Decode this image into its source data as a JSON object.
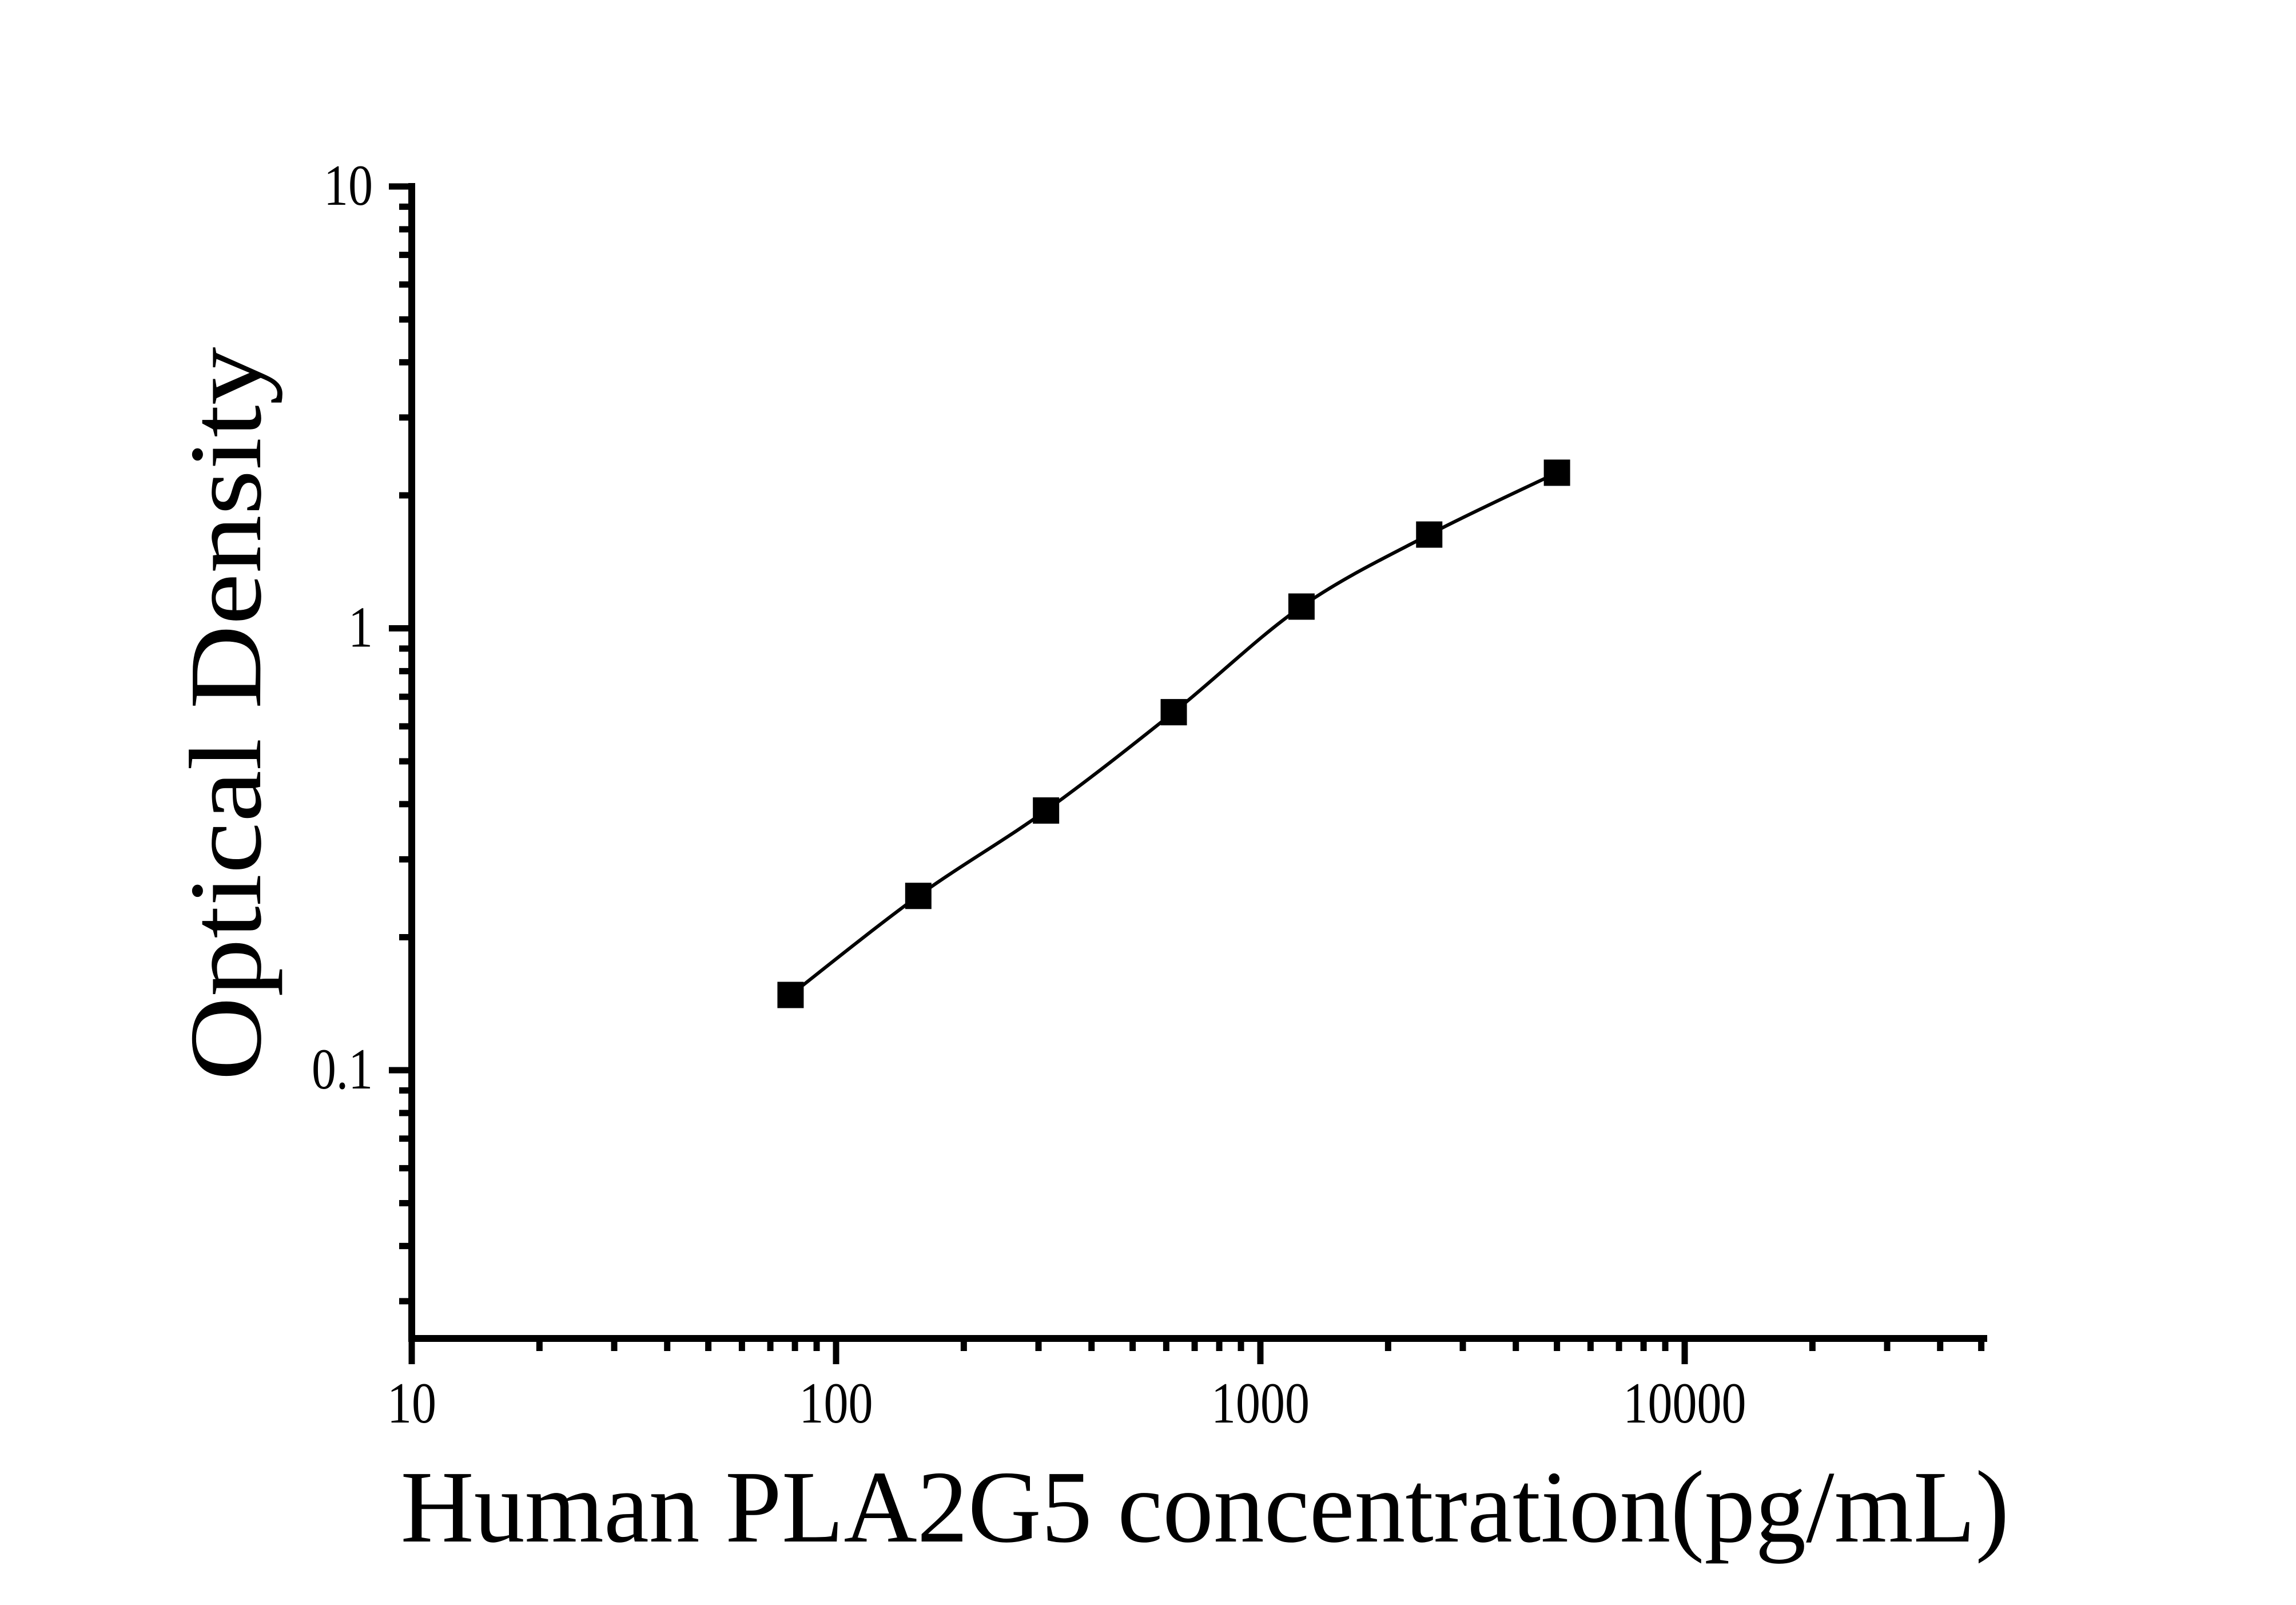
{
  "figure": {
    "background_color": "#ffffff",
    "ink_color": "#000000"
  },
  "chart_data": {
    "type": "scatter",
    "subtype": "standard-curve-with-smooth-fit-line",
    "title": "",
    "xlabel": "Human PLA2G5 concentration(pg/mL)",
    "ylabel": "Optical Density",
    "x_scale": "log10",
    "y_scale": "log10",
    "xlim": [
      10,
      52000
    ],
    "ylim": [
      0.025,
      10
    ],
    "grid": "off",
    "legend": "none",
    "x_ticks": [
      10,
      100,
      1000,
      10000
    ],
    "x_tick_labels": [
      "10",
      "100",
      "1000",
      "10000"
    ],
    "y_ticks": [
      10,
      1,
      0.1
    ],
    "y_tick_labels": [
      "10",
      "1",
      "0.1"
    ],
    "series": [
      {
        "name": "standard-curve",
        "marker": "filled-square",
        "marker_color": "#000000",
        "line_color": "#000000",
        "x": [
          78.125,
          156.25,
          312.5,
          625,
          1250,
          2500,
          5000
        ],
        "y": [
          0.148,
          0.248,
          0.387,
          0.646,
          1.12,
          1.63,
          2.25
        ]
      }
    ]
  }
}
